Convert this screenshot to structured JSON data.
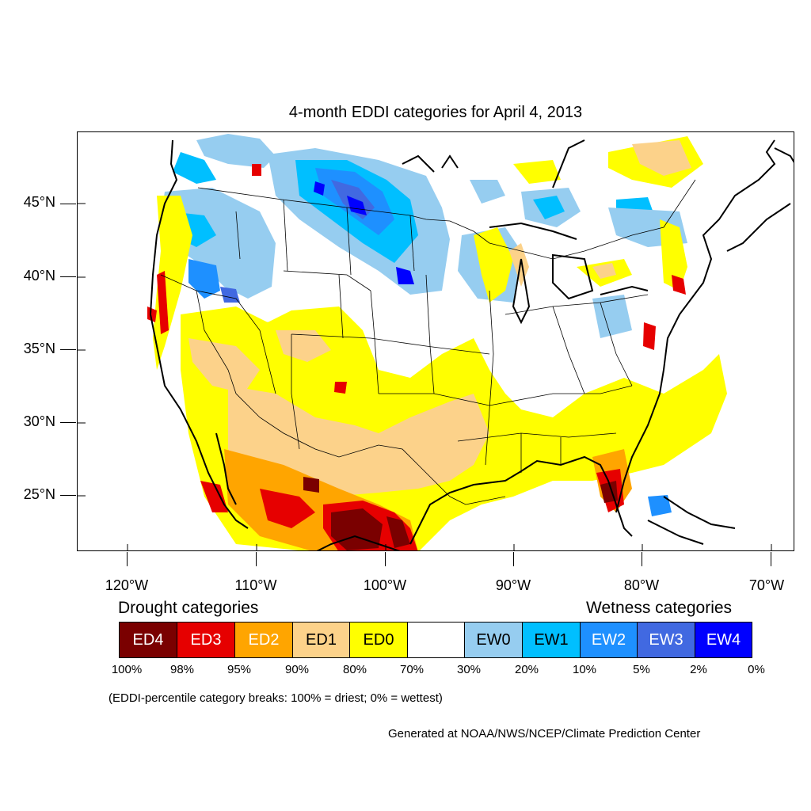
{
  "title": "4-month EDDI categories for April 4, 2013",
  "lat_labels": [
    "45°N",
    "40°N",
    "35°N",
    "30°N",
    "25°N"
  ],
  "lon_labels": [
    "120°W",
    "110°W",
    "100°W",
    "90°W",
    "80°W",
    "70°W"
  ],
  "legend": {
    "drought_heading": "Drought categories",
    "wetness_heading": "Wetness categories",
    "categories": [
      {
        "label": "ED4",
        "color": "#7a0000",
        "text_color": "#ffffff"
      },
      {
        "label": "ED3",
        "color": "#e60000",
        "text_color": "#ffffff"
      },
      {
        "label": "ED2",
        "color": "#ffa500",
        "text_color": "#ffffff"
      },
      {
        "label": "ED1",
        "color": "#fcd28a",
        "text_color": "#000000"
      },
      {
        "label": "ED0",
        "color": "#ffff00",
        "text_color": "#000000"
      },
      {
        "label": "",
        "color": "#ffffff",
        "text_color": "#000000"
      },
      {
        "label": "EW0",
        "color": "#96cdf0",
        "text_color": "#000000"
      },
      {
        "label": "EW1",
        "color": "#00bfff",
        "text_color": "#000000"
      },
      {
        "label": "EW2",
        "color": "#1e90ff",
        "text_color": "#ffffff"
      },
      {
        "label": "EW3",
        "color": "#4169e1",
        "text_color": "#ffffff"
      },
      {
        "label": "EW4",
        "color": "#0000ff",
        "text_color": "#ffffff"
      }
    ],
    "percentiles": [
      "100%",
      "98%",
      "95%",
      "90%",
      "80%",
      "70%",
      "30%",
      "20%",
      "10%",
      "5%",
      "2%",
      "0%"
    ],
    "note": "(EDDI-percentile category breaks: 100% = driest; 0% = wettest)"
  },
  "credit": "Generated at NOAA/NWS/NCEP/Climate Prediction Center"
}
